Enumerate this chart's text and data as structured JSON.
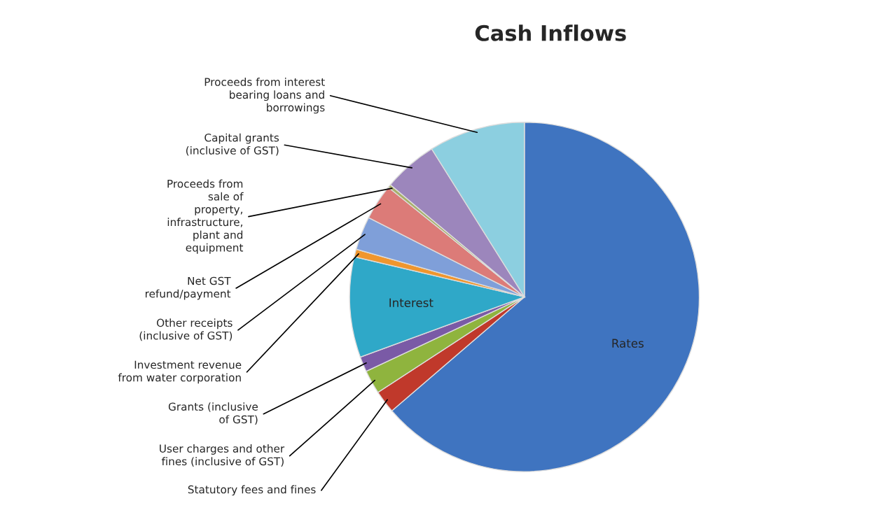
{
  "chart_data": {
    "type": "pie",
    "title": "Cash Inflows",
    "categories": [
      "Rates",
      "Statutory fees and fines",
      "User charges and other\nfines (inclusive of GST)",
      "Grants (inclusive\nof GST)",
      "Interest",
      "Investment revenue\nfrom water corporation",
      "Other receipts\n(inclusive of GST)",
      "Net GST\nrefund/payment",
      "Proceeds from\nsale of\nproperty,\ninfrastructure,\nplant and\nequipment",
      "Capital grants\n(inclusive of GST)",
      "Proceeds from interest\nbearing loans and\nborrowings"
    ],
    "values": [
      63.7,
      2.1,
      2.2,
      1.4,
      9.3,
      0.7,
      3.1,
      3.3,
      0.3,
      5.0,
      8.9
    ],
    "colors": [
      "#3f74c0",
      "#c0392b",
      "#8fb43e",
      "#7a5aa6",
      "#2fa8c8",
      "#f0962d",
      "#7f9fd9",
      "#dc7b78",
      "#a9b06a",
      "#9c86bc",
      "#8ccfe0"
    ]
  }
}
